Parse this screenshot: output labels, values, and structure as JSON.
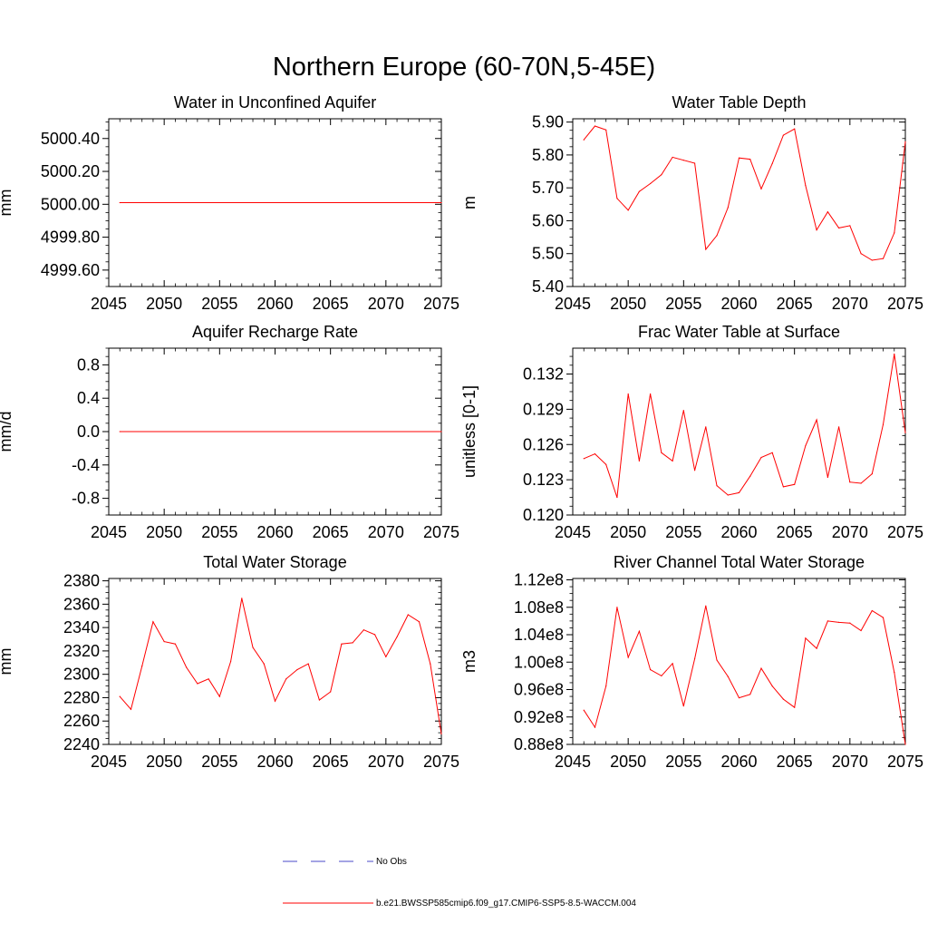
{
  "figure": {
    "title": "Northern Europe (60-70N,5-45E)"
  },
  "legend": {
    "obs_label": "No Obs",
    "model_label": "b.e21.BWSSP585cmip6.f09_g17.CMIP6-SSP5-8.5-WACCM.004",
    "obs_color": "#4a4ac8",
    "model_color": "#ff0000"
  },
  "chart_data": [
    {
      "type": "line",
      "title": "Water in Unconfined Aquifer",
      "ylabel": "mm",
      "xlim": [
        2045,
        2075
      ],
      "ylim": [
        4999.5,
        5000.52
      ],
      "xticks": [
        2045,
        2050,
        2055,
        2060,
        2065,
        2070,
        2075
      ],
      "xticklabels": [
        "2045",
        "2050",
        "2055",
        "2060",
        "2065",
        "2070",
        "2075"
      ],
      "yticks": [
        4999.6,
        4999.8,
        5000.0,
        5000.2,
        5000.4
      ],
      "yticklabels": [
        "4999.60",
        "4999.80",
        "5000.00",
        "5000.20",
        "5000.40"
      ],
      "series": [
        {
          "name": "b.e21.BWSSP585cmip6.f09_g17.CMIP6-SSP5-8.5-WACCM.004",
          "x": [
            2046,
            2075
          ],
          "values": [
            5000.01,
            5000.01
          ]
        }
      ]
    },
    {
      "type": "line",
      "title": "Water Table Depth",
      "ylabel": "m",
      "xlim": [
        2045,
        2075
      ],
      "ylim": [
        5.4,
        5.91
      ],
      "xticks": [
        2045,
        2050,
        2055,
        2060,
        2065,
        2070,
        2075
      ],
      "xticklabels": [
        "2045",
        "2050",
        "2055",
        "2060",
        "2065",
        "2070",
        "2075"
      ],
      "yticks": [
        5.4,
        5.5,
        5.6,
        5.7,
        5.8,
        5.9
      ],
      "yticklabels": [
        "5.40",
        "5.50",
        "5.60",
        "5.70",
        "5.80",
        "5.90"
      ],
      "series": [
        {
          "name": "b.e21.BWSSP585cmip6.f09_g17.CMIP6-SSP5-8.5-WACCM.004",
          "x": [
            2046,
            2047,
            2048,
            2049,
            2050,
            2051,
            2052,
            2053,
            2054,
            2055,
            2056,
            2057,
            2058,
            2059,
            2060,
            2061,
            2062,
            2063,
            2064,
            2065,
            2066,
            2067,
            2068,
            2069,
            2070,
            2071,
            2072,
            2073,
            2074,
            2075
          ],
          "values": [
            5.846,
            5.888,
            5.876,
            5.668,
            5.632,
            5.689,
            5.713,
            5.74,
            5.793,
            5.784,
            5.775,
            5.513,
            5.555,
            5.64,
            5.791,
            5.787,
            5.697,
            5.774,
            5.86,
            5.879,
            5.707,
            5.572,
            5.627,
            5.578,
            5.585,
            5.5,
            5.48,
            5.485,
            5.563,
            5.84
          ]
        }
      ]
    },
    {
      "type": "line",
      "title": "Aquifer Recharge Rate",
      "ylabel": "mm/d",
      "xlim": [
        2045,
        2075
      ],
      "ylim": [
        -1.0,
        1.0
      ],
      "xticks": [
        2045,
        2050,
        2055,
        2060,
        2065,
        2070,
        2075
      ],
      "xticklabels": [
        "2045",
        "2050",
        "2055",
        "2060",
        "2065",
        "2070",
        "2075"
      ],
      "yticks": [
        -0.8,
        -0.4,
        0.0,
        0.4,
        0.8
      ],
      "yticklabels": [
        "-0.8",
        "-0.4",
        "0.0",
        "0.4",
        "0.8"
      ],
      "series": [
        {
          "name": "b.e21.BWSSP585cmip6.f09_g17.CMIP6-SSP5-8.5-WACCM.004",
          "x": [
            2046,
            2075
          ],
          "values": [
            0.0,
            0.0
          ]
        }
      ]
    },
    {
      "type": "line",
      "title": "Frac Water Table at Surface",
      "ylabel": "unitless [0-1]",
      "xlim": [
        2045,
        2075
      ],
      "ylim": [
        0.12,
        0.1342
      ],
      "xticks": [
        2045,
        2050,
        2055,
        2060,
        2065,
        2070,
        2075
      ],
      "xticklabels": [
        "2045",
        "2050",
        "2055",
        "2060",
        "2065",
        "2070",
        "2075"
      ],
      "yticks": [
        0.12,
        0.123,
        0.126,
        0.129,
        0.132
      ],
      "yticklabels": [
        "0.120",
        "0.123",
        "0.126",
        "0.129",
        "0.132"
      ],
      "series": [
        {
          "name": "b.e21.BWSSP585cmip6.f09_g17.CMIP6-SSP5-8.5-WACCM.004",
          "x": [
            2046,
            2047,
            2048,
            2049,
            2050,
            2051,
            2052,
            2053,
            2054,
            2055,
            2056,
            2057,
            2058,
            2059,
            2060,
            2061,
            2062,
            2063,
            2064,
            2065,
            2066,
            2067,
            2068,
            2069,
            2070,
            2071,
            2072,
            2073,
            2074,
            2075
          ],
          "values": [
            0.1248,
            0.1252,
            0.1243,
            0.1215,
            0.1303,
            0.1246,
            0.1303,
            0.1253,
            0.1246,
            0.1289,
            0.1238,
            0.1275,
            0.1225,
            0.1217,
            0.1219,
            0.1233,
            0.1249,
            0.1253,
            0.1224,
            0.1226,
            0.1259,
            0.1281,
            0.1232,
            0.1275,
            0.1228,
            0.1227,
            0.1235,
            0.1277,
            0.1337,
            0.127
          ]
        }
      ]
    },
    {
      "type": "line",
      "title": "Total Water Storage",
      "ylabel": "mm",
      "xlim": [
        2045,
        2075
      ],
      "ylim": [
        2240,
        2382
      ],
      "xticks": [
        2045,
        2050,
        2055,
        2060,
        2065,
        2070,
        2075
      ],
      "xticklabels": [
        "2045",
        "2050",
        "2055",
        "2060",
        "2065",
        "2070",
        "2075"
      ],
      "yticks": [
        2240,
        2260,
        2280,
        2300,
        2320,
        2340,
        2360,
        2380
      ],
      "yticklabels": [
        "2240",
        "2260",
        "2280",
        "2300",
        "2320",
        "2340",
        "2360",
        "2380"
      ],
      "series": [
        {
          "name": "b.e21.BWSSP585cmip6.f09_g17.CMIP6-SSP5-8.5-WACCM.004",
          "x": [
            2046,
            2047,
            2048,
            2049,
            2050,
            2051,
            2052,
            2053,
            2054,
            2055,
            2056,
            2057,
            2058,
            2059,
            2060,
            2061,
            2062,
            2063,
            2064,
            2065,
            2066,
            2067,
            2068,
            2069,
            2070,
            2071,
            2072,
            2073,
            2074,
            2075
          ],
          "values": [
            2281,
            2270,
            2307,
            2345,
            2328,
            2326,
            2306,
            2292,
            2296,
            2281,
            2311,
            2365,
            2323,
            2309,
            2277,
            2296,
            2304,
            2309,
            2278,
            2285,
            2326,
            2327,
            2338,
            2334,
            2315,
            2332,
            2351,
            2345,
            2309,
            2249
          ]
        }
      ]
    },
    {
      "type": "line",
      "title": "River Channel Total Water Storage",
      "ylabel": "m3",
      "xlim": [
        2045,
        2075
      ],
      "ylim": [
        0.88,
        1.122
      ],
      "xticks": [
        2045,
        2050,
        2055,
        2060,
        2065,
        2070,
        2075
      ],
      "xticklabels": [
        "2045",
        "2050",
        "2055",
        "2060",
        "2065",
        "2070",
        "2075"
      ],
      "yticks": [
        0.88,
        0.92,
        0.96,
        1.0,
        1.04,
        1.08,
        1.12
      ],
      "yticklabels": [
        "0.88e8",
        "0.92e8",
        "0.96e8",
        "1.00e8",
        "1.04e8",
        "1.08e8",
        "1.12e8"
      ],
      "series": [
        {
          "name": "b.e21.BWSSP585cmip6.f09_g17.CMIP6-SSP5-8.5-WACCM.004",
          "x": [
            2046,
            2047,
            2048,
            2049,
            2050,
            2051,
            2052,
            2053,
            2054,
            2055,
            2056,
            2057,
            2058,
            2059,
            2060,
            2061,
            2062,
            2063,
            2064,
            2065,
            2066,
            2067,
            2068,
            2069,
            2070,
            2071,
            2072,
            2073,
            2074,
            2075
          ],
          "values": [
            0.93,
            0.905,
            0.965,
            1.08,
            1.007,
            1.045,
            0.989,
            0.98,
            0.998,
            0.936,
            1.005,
            1.082,
            1.003,
            0.979,
            0.948,
            0.953,
            0.991,
            0.965,
            0.946,
            0.934,
            1.035,
            1.02,
            1.06,
            1.058,
            1.057,
            1.046,
            1.075,
            1.065,
            0.985,
            0.88
          ]
        }
      ]
    }
  ]
}
